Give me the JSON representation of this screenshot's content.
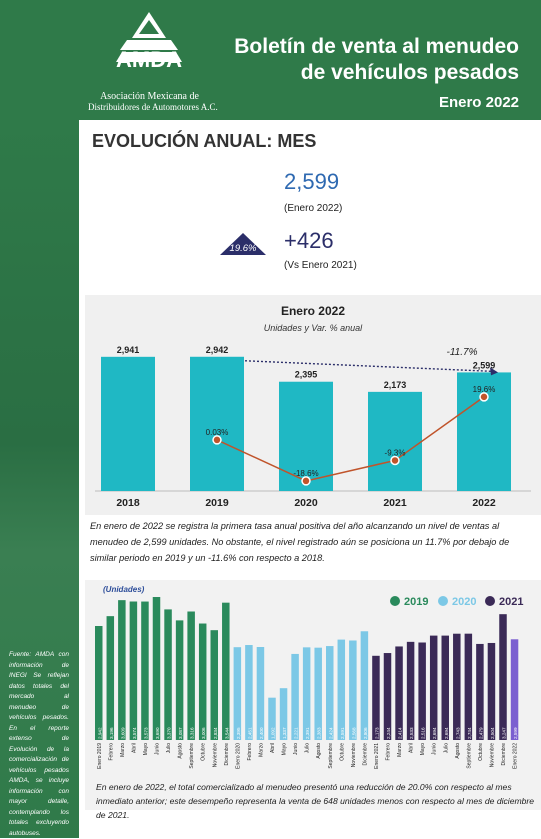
{
  "header": {
    "logo_text": "AMDA",
    "org_line1": "Asociación Mexicana de",
    "org_line2": "Distribuidores de Automotores A.C.",
    "title_line1": "Boletín de venta al menudeo",
    "title_line2": "de vehículos pesados",
    "period": "Enero 2022"
  },
  "section_title": "EVOLUCIÓN ANUAL: MES",
  "kpi": {
    "value": "2,599",
    "value_label": "(Enero 2022)",
    "pct_badge": "19.6%",
    "delta": "+426",
    "delta_label": "(Vs Enero 2021)"
  },
  "colors": {
    "green": "#2f7a49",
    "teal": "#1fb8c4",
    "line": "#c0542b",
    "c2019": "#2a8a5c",
    "c2020": "#7cc8e6",
    "c2021": "#3b2a57",
    "c2022": "#7b5fd0",
    "navy": "#2b2e69"
  },
  "chart_data": [
    {
      "type": "bar",
      "title": "Enero 2022",
      "subtitle": "Unidades y Var. % anual",
      "categories": [
        "2018",
        "2019",
        "2020",
        "2021",
        "2022"
      ],
      "series": [
        {
          "values": [
            2941,
            2942,
            2395,
            2173,
            2599
          ]
        },
        {
          "values": [
            null,
            0.03,
            -18.6,
            -9.3,
            19.6
          ]
        }
      ],
      "value_labels": [
        "2,941",
        "2,942",
        "2,395",
        "2,173",
        "2,599"
      ],
      "pct_labels": [
        "",
        "0.03%",
        "-18.6%",
        "-9.3%",
        "19.6%"
      ],
      "annotation": "-11.7%",
      "ylim": [
        0,
        3200
      ]
    },
    {
      "type": "bar",
      "ylabel": "(Unidades)",
      "legend": [
        "2019",
        "2020",
        "2021"
      ],
      "categories": [
        "Enero 2019",
        "Febrero",
        "Marzo",
        "Abril",
        "Mayo",
        "Junio",
        "Julio",
        "Agosto",
        "Septiembre",
        "Octubre",
        "Noviembre",
        "Diciembre",
        "Enero 2020",
        "Febrero",
        "Marzo",
        "Abril",
        "Mayo",
        "Junio",
        "Julio",
        "Agosto",
        "Septiembre",
        "Octubre",
        "Noviembre",
        "Diciembre",
        "Enero 2021",
        "Febrero",
        "Marzo",
        "Abril",
        "Mayo",
        "Junio",
        "Julio",
        "Agosto",
        "Septiembre",
        "Octubre",
        "Noviembre",
        "Diciembre",
        "Enero 2022"
      ],
      "values": [
        2942,
        3196,
        3609,
        3574,
        3573,
        3690,
        3370,
        3087,
        3316,
        3006,
        2834,
        3544,
        2395,
        2451,
        2400,
        1092,
        1337,
        2221,
        2391,
        2383,
        2424,
        2591,
        2568,
        2806,
        2173,
        2244,
        2414,
        2533,
        2516,
        2694,
        2694,
        2743,
        2744,
        2479,
        2504,
        3247,
        2599
      ],
      "value_labels": [
        "2,942",
        "3,196",
        "3,609",
        "3,574",
        "3,573",
        "3,690",
        "3,370",
        "3,087",
        "3,316",
        "3,006",
        "2,834",
        "3,544",
        "2,395",
        "2,451",
        "2,400",
        "1,092",
        "1,337",
        "2,221",
        "2,391",
        "2,383",
        "2,424",
        "2,591",
        "2,568",
        "2,806",
        "2,173",
        "2,244",
        "2,414",
        "2,533",
        "2,516",
        "2,694",
        "2,694",
        "2,743",
        "2,744",
        "2,479",
        "2,504",
        "3,247",
        "2,599"
      ],
      "ylim": [
        0,
        4000
      ]
    }
  ],
  "para1": "En enero de 2022 se registra la primera tasa anual positiva del año alcanzando un nivel de ventas al menudeo de 2,599 unidades. No obstante, el nivel registrado  aún se posiciona un 11.7% por debajo de similar periodo en 2019 y un -11.6% con respecto a 2018.",
  "para2": "En enero de 2022, el total comercializado al menudeo presentó una reducción de 20.0% con respecto al mes inmediato anterior; este desempeño representa la venta de 648  unidades menos con respecto al mes de diciembre de 2021.",
  "fuente": "Fuente: AMDA con información de INEGI Se reflejan datos totales del mercado al menudeo de vehículos pesados. En el reporte extenso de Evolución de la comercialización de vehículos pesados AMDA, se incluye información con mayor detalle, contemplando los totales excluyendo autobuses."
}
